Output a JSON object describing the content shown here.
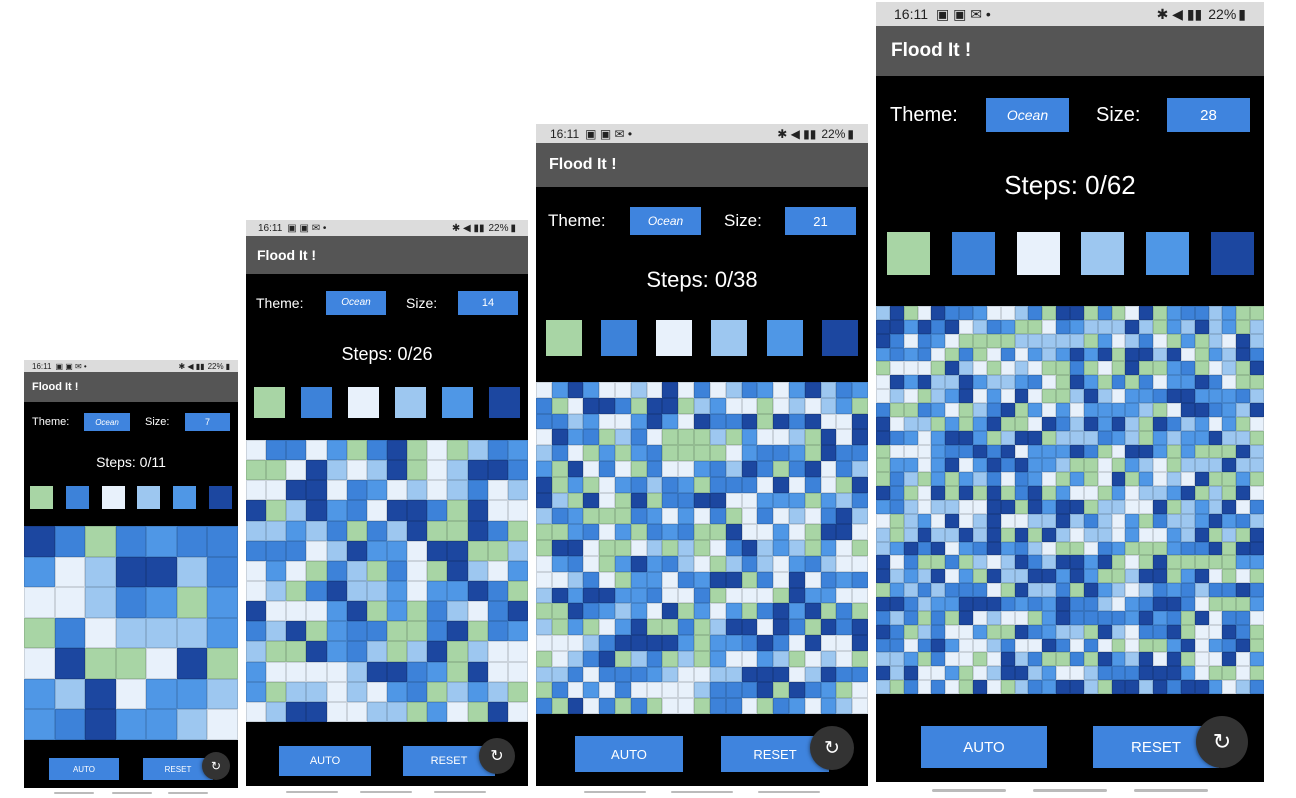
{
  "status": {
    "time": "16:11",
    "battery": "22%",
    "network": "4G"
  },
  "app": {
    "title": "Flood It !",
    "theme_label": "Theme:",
    "size_label": "Size:",
    "auto_label": "AUTO",
    "reset_label": "RESET"
  },
  "colors": {
    "palette": [
      "#a8d5a5",
      "#3d82d9",
      "#e8f1fb",
      "#9dc7f0",
      "#4f97e6",
      "#1c47a0"
    ]
  },
  "screens": [
    {
      "theme": "Ocean",
      "size": "7",
      "steps": "Steps: 0/11"
    },
    {
      "theme": "Ocean",
      "size": "14",
      "steps": "Steps: 0/26"
    },
    {
      "theme": "Ocean",
      "size": "21",
      "steps": "Steps: 0/38"
    },
    {
      "theme": "Ocean",
      "size": "28",
      "steps": "Steps: 0/62"
    }
  ]
}
